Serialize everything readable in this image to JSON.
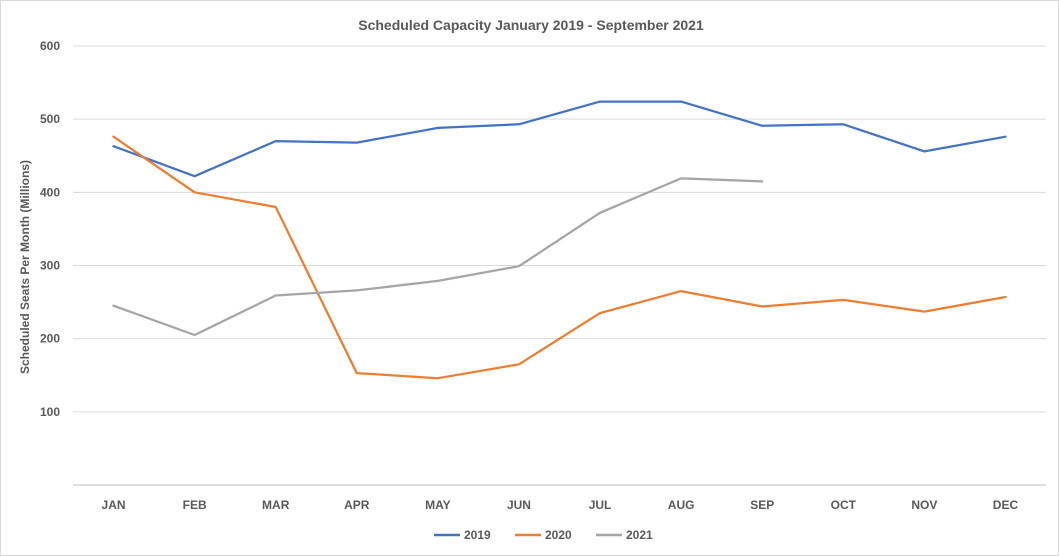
{
  "chart_data": {
    "type": "line",
    "title": "Scheduled Capacity January 2019  - September 2021",
    "ylabel": "Scheduled Seats Per Month (Millions)",
    "xlabel": "",
    "categories": [
      "JAN",
      "FEB",
      "MAR",
      "APR",
      "MAY",
      "JUN",
      "JUL",
      "AUG",
      "SEP",
      "OCT",
      "NOV",
      "DEC"
    ],
    "yticks": [
      100,
      200,
      300,
      400,
      500,
      600
    ],
    "ylim": [
      0,
      600
    ],
    "grid": true,
    "legend_position": "bottom",
    "series": [
      {
        "name": "2019",
        "color": "#4472c4",
        "values": [
          463,
          422,
          470,
          468,
          488,
          493,
          524,
          524,
          491,
          493,
          456,
          476
        ]
      },
      {
        "name": "2020",
        "color": "#ed7d31",
        "values": [
          476,
          400,
          380,
          153,
          146,
          165,
          235,
          265,
          244,
          253,
          237,
          257
        ]
      },
      {
        "name": "2021",
        "color": "#a5a5a5",
        "values": [
          245,
          205,
          259,
          266,
          279,
          299,
          372,
          419,
          415,
          null,
          null,
          null
        ]
      }
    ]
  }
}
